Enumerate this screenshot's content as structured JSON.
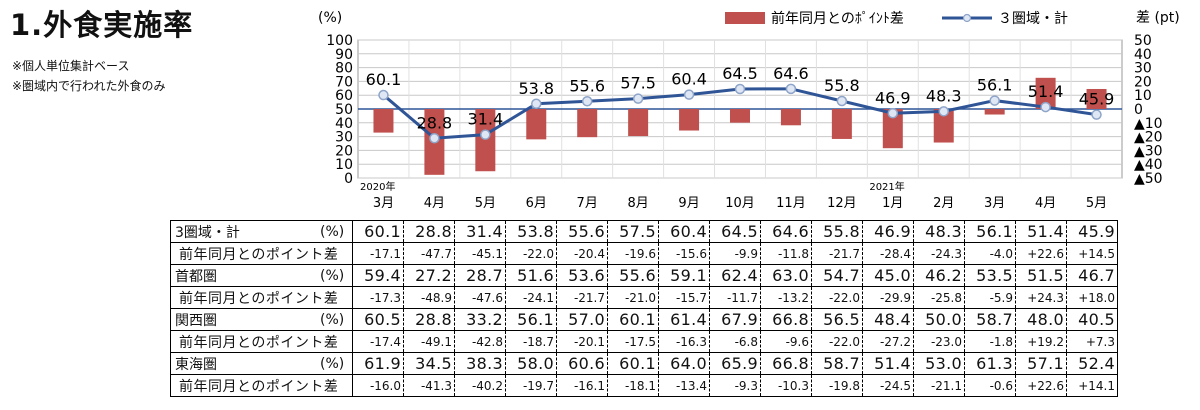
{
  "title": "1.外食実施率",
  "notes": [
    "※個人単位集計ベース",
    "※圏域内で行われた外食のみ"
  ],
  "chart_data": {
    "type": "bar",
    "left_axis_unit": "(%)",
    "right_axis_unit": "差 (pt)",
    "categories": [
      "3月",
      "4月",
      "5月",
      "6月",
      "7月",
      "8月",
      "9月",
      "10月",
      "11月",
      "12月",
      "1月",
      "2月",
      "3月",
      "4月",
      "5月"
    ],
    "year_labels": [
      {
        "index": 0,
        "label": "2020年"
      },
      {
        "index": 10,
        "label": "2021年"
      }
    ],
    "left_ticks": [
      "0",
      "10",
      "20",
      "30",
      "40",
      "50",
      "60",
      "70",
      "80",
      "90",
      "100"
    ],
    "right_ticks": [
      "▲50",
      "▲40",
      "▲30",
      "▲20",
      "▲10",
      "0",
      "10",
      "20",
      "30",
      "40",
      "50"
    ],
    "ylim_left": [
      0,
      100
    ],
    "ylim_right": [
      -50,
      50
    ],
    "grid": true,
    "legend_position": "top-right",
    "series": [
      {
        "name": "前年同月とのﾎﾟｲﾝﾄ差",
        "kind": "bar",
        "axis": "right",
        "color": "#c0504d",
        "values": [
          -17.1,
          -47.7,
          -45.1,
          -22.0,
          -20.4,
          -19.6,
          -15.6,
          -9.9,
          -11.8,
          -21.7,
          -28.4,
          -24.3,
          -4.0,
          22.6,
          14.5
        ]
      },
      {
        "name": "３圏域・計",
        "kind": "line",
        "axis": "left",
        "color": "#2f5597",
        "values": [
          60.1,
          28.8,
          31.4,
          53.8,
          55.6,
          57.5,
          60.4,
          64.5,
          64.6,
          55.8,
          46.9,
          48.3,
          56.1,
          51.4,
          45.9
        ],
        "labels": [
          "60.1",
          "28.8",
          "31.4",
          "53.8",
          "55.6",
          "57.5",
          "60.4",
          "64.5",
          "64.6",
          "55.8",
          "46.9",
          "48.3",
          "56.1",
          "51.4",
          "45.9"
        ]
      }
    ]
  },
  "table": {
    "month_header": [
      "3月",
      "4月",
      "5月",
      "6月",
      "7月",
      "8月",
      "9月",
      "10月",
      "11月",
      "12月",
      "1月",
      "2月",
      "3月",
      "4月",
      "5月"
    ],
    "diff_label": "前年同月とのポイント差",
    "unit": "(%)",
    "groups": [
      {
        "name": "3圏域・計",
        "values": [
          "60.1",
          "28.8",
          "31.4",
          "53.8",
          "55.6",
          "57.5",
          "60.4",
          "64.5",
          "64.6",
          "55.8",
          "46.9",
          "48.3",
          "56.1",
          "51.4",
          "45.9"
        ],
        "diffs": [
          "-17.1",
          "-47.7",
          "-45.1",
          "-22.0",
          "-20.4",
          "-19.6",
          "-15.6",
          "-9.9",
          "-11.8",
          "-21.7",
          "-28.4",
          "-24.3",
          "-4.0",
          "+22.6",
          "+14.5"
        ]
      },
      {
        "name": "首都圏",
        "values": [
          "59.4",
          "27.2",
          "28.7",
          "51.6",
          "53.6",
          "55.6",
          "59.1",
          "62.4",
          "63.0",
          "54.7",
          "45.0",
          "46.2",
          "53.5",
          "51.5",
          "46.7"
        ],
        "diffs": [
          "-17.3",
          "-48.9",
          "-47.6",
          "-24.1",
          "-21.7",
          "-21.0",
          "-15.7",
          "-11.7",
          "-13.2",
          "-22.0",
          "-29.9",
          "-25.8",
          "-5.9",
          "+24.3",
          "+18.0"
        ]
      },
      {
        "name": "関西圏",
        "values": [
          "60.5",
          "28.8",
          "33.2",
          "56.1",
          "57.0",
          "60.1",
          "61.4",
          "67.9",
          "66.8",
          "56.5",
          "48.4",
          "50.0",
          "58.7",
          "48.0",
          "40.5"
        ],
        "diffs": [
          "-17.4",
          "-49.1",
          "-42.8",
          "-18.7",
          "-20.1",
          "-17.5",
          "-16.3",
          "-6.8",
          "-9.6",
          "-22.0",
          "-27.2",
          "-23.0",
          "-1.8",
          "+19.2",
          "+7.3"
        ]
      },
      {
        "name": "東海圏",
        "values": [
          "61.9",
          "34.5",
          "38.3",
          "58.0",
          "60.6",
          "60.1",
          "64.0",
          "65.9",
          "66.8",
          "58.7",
          "51.4",
          "53.0",
          "61.3",
          "57.1",
          "52.4"
        ],
        "diffs": [
          "-16.0",
          "-41.3",
          "-40.2",
          "-19.7",
          "-16.1",
          "-18.1",
          "-13.4",
          "-9.3",
          "-10.3",
          "-19.8",
          "-24.5",
          "-21.1",
          "-0.6",
          "+22.6",
          "+14.1"
        ]
      }
    ]
  }
}
